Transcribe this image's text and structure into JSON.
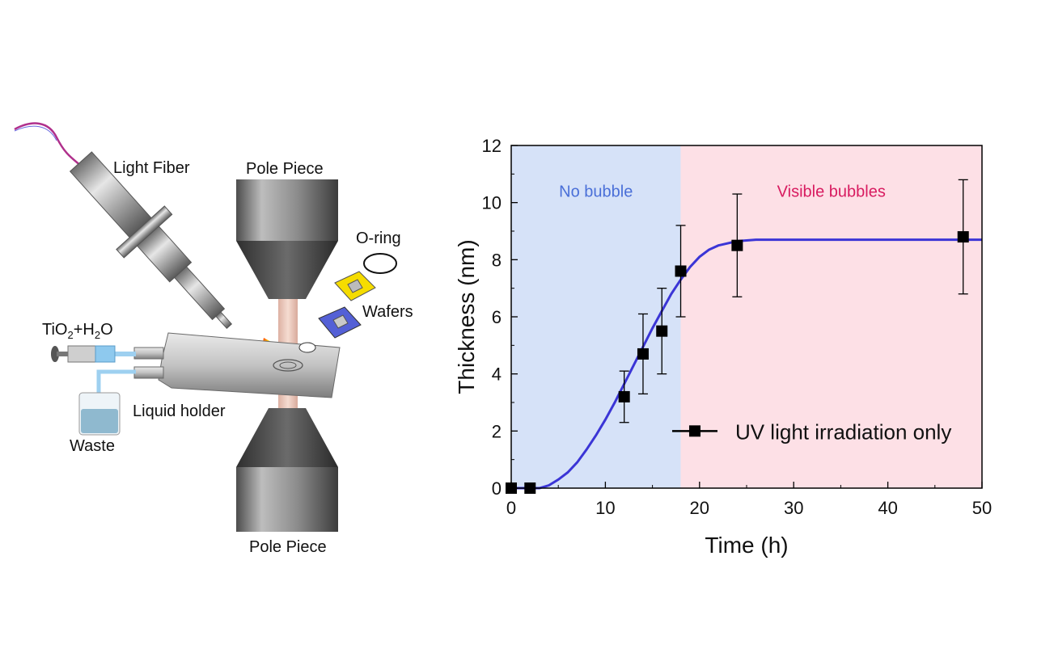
{
  "schematic": {
    "labels": {
      "light_fiber": "Light Fiber",
      "pole_piece_top": "Pole Piece",
      "pole_piece_bottom": "Pole Piece",
      "o_ring": "O-ring",
      "wafers": "Wafers",
      "tio2_h2o": "TiO2+H2O",
      "liquid_holder": "Liquid holder",
      "waste": "Waste"
    }
  },
  "chart_data": {
    "type": "scatter",
    "title": "",
    "xlabel": "Time (h)",
    "ylabel": "Thickness (nm)",
    "xlim": [
      0,
      50
    ],
    "ylim": [
      0,
      12
    ],
    "xticks": [
      0,
      10,
      20,
      30,
      40,
      50
    ],
    "yticks": [
      0,
      2,
      4,
      6,
      8,
      10,
      12
    ],
    "grid": false,
    "regions": [
      {
        "label": "No bubble",
        "x_start": 0,
        "x_end": 18,
        "color": "#d6e2f8",
        "label_color": "#4a6fd8"
      },
      {
        "label": "Visible bubbles",
        "x_start": 18,
        "x_end": 50,
        "color": "#fde0e6",
        "label_color": "#d81b60"
      }
    ],
    "series": [
      {
        "name": "UV light irradiation only",
        "marker": "square",
        "color": "#000000",
        "x": [
          0,
          2,
          12,
          14,
          16,
          18,
          24,
          48
        ],
        "y": [
          0,
          0,
          3.2,
          4.7,
          5.5,
          7.6,
          8.5,
          8.8
        ],
        "error": [
          0,
          0,
          0.9,
          1.4,
          1.5,
          1.6,
          1.8,
          2.0
        ]
      }
    ],
    "fit_curve": {
      "color": "#3b35d6",
      "x": [
        0,
        2,
        3,
        4,
        5,
        6,
        7,
        8,
        9,
        10,
        11,
        12,
        13,
        14,
        15,
        16,
        17,
        18,
        19,
        20,
        21,
        22,
        24,
        26,
        30,
        40,
        50
      ],
      "y": [
        0,
        0,
        0,
        0.1,
        0.3,
        0.55,
        0.9,
        1.35,
        1.85,
        2.4,
        3.0,
        3.65,
        4.3,
        4.95,
        5.6,
        6.2,
        6.8,
        7.3,
        7.75,
        8.1,
        8.35,
        8.5,
        8.65,
        8.7,
        8.7,
        8.7,
        8.7
      ]
    },
    "legend": {
      "position": "lower-right"
    }
  }
}
